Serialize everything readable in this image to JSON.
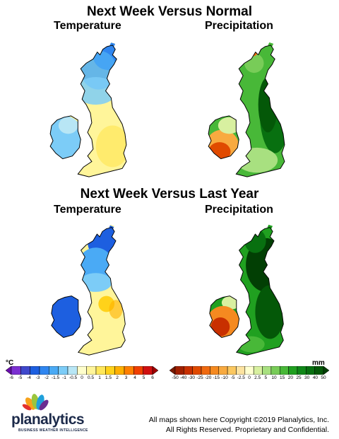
{
  "titles": {
    "normal": "Next Week Versus Normal",
    "last_year": "Next Week Versus Last Year"
  },
  "map_labels": {
    "temperature": "Temperature",
    "precipitation": "Precipitation"
  },
  "temperature_scale": {
    "unit": "°C",
    "ticks": [
      "-6",
      "-5",
      "-4",
      "-3",
      "-2",
      "-1.5",
      "-1",
      "-0.5",
      "0",
      "0.5",
      "1",
      "1.5",
      "2",
      "3",
      "4",
      "5",
      "6"
    ],
    "colors": [
      "#6a0dad",
      "#7b2fd1",
      "#3f48cc",
      "#1d5fe0",
      "#2f86f0",
      "#4aaaf5",
      "#7cccf7",
      "#b8e6f5",
      "#fefecc",
      "#fff59a",
      "#ffe75a",
      "#ffd21a",
      "#ffb000",
      "#ff8000",
      "#f04000",
      "#d01010",
      "#a00000"
    ]
  },
  "precip_scale": {
    "unit": "mm",
    "ticks": [
      "-50",
      "-40",
      "-30",
      "-25",
      "-20",
      "-15",
      "-10",
      "-5",
      "-2.5",
      "0",
      "2.5",
      "5",
      "10",
      "15",
      "20",
      "25",
      "30",
      "40",
      "50"
    ],
    "colors": [
      "#7a1a00",
      "#a02000",
      "#c83000",
      "#e04a00",
      "#f06a10",
      "#f58a20",
      "#f8aa40",
      "#fbc860",
      "#fde3a0",
      "#ffffd0",
      "#d8f0a0",
      "#a8e080",
      "#78cc58",
      "#48b838",
      "#20a020",
      "#108818",
      "#087010",
      "#045808",
      "#023f04"
    ]
  },
  "logo": {
    "name": "planalytics",
    "tagline": "BUSINESS WEATHER INTELLIGENCE",
    "colors": [
      "#f7a21b",
      "#9bc53d",
      "#1fa0db",
      "#6a2d91",
      "#e4312d"
    ]
  },
  "copyright": {
    "line1": "All maps shown here Copyright ©2019 Planalytics, Inc.",
    "line2": "All Rights Reserved. Proprietary and Confidential."
  }
}
